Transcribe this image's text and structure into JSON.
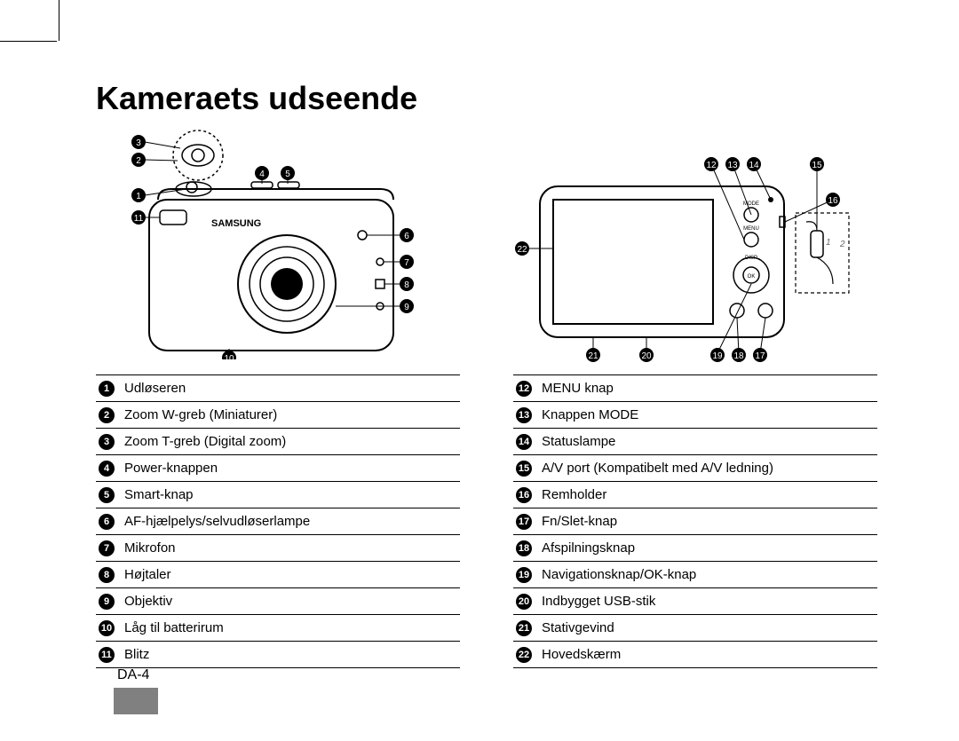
{
  "page": {
    "title": "Kameraets udseende",
    "number": "DA-4"
  },
  "front_parts": [
    {
      "n": 1,
      "label": "Udløseren"
    },
    {
      "n": 2,
      "label": "Zoom W-greb (Miniaturer)"
    },
    {
      "n": 3,
      "label": "Zoom T-greb (Digital zoom)"
    },
    {
      "n": 4,
      "label": "Power-knappen"
    },
    {
      "n": 5,
      "label": "Smart-knap"
    },
    {
      "n": 6,
      "label": "AF-hjælpelys/selvudløserlampe"
    },
    {
      "n": 7,
      "label": "Mikrofon"
    },
    {
      "n": 8,
      "label": "Højtaler"
    },
    {
      "n": 9,
      "label": "Objektiv"
    },
    {
      "n": 10,
      "label": "Låg til batterirum"
    },
    {
      "n": 11,
      "label": "Blitz"
    }
  ],
  "back_parts": [
    {
      "n": 12,
      "label": "MENU knap"
    },
    {
      "n": 13,
      "label": "Knappen MODE"
    },
    {
      "n": 14,
      "label": "Statuslampe"
    },
    {
      "n": 15,
      "label": "A/V port (Kompatibelt med A/V ledning)"
    },
    {
      "n": 16,
      "label": "Remholder"
    },
    {
      "n": 17,
      "label": "Fn/Slet-knap"
    },
    {
      "n": 18,
      "label": "Afspilningsknap"
    },
    {
      "n": 19,
      "label": "Navigationsknap/OK-knap"
    },
    {
      "n": 20,
      "label": "Indbygget USB-stik"
    },
    {
      "n": 21,
      "label": "Stativgevind"
    },
    {
      "n": 22,
      "label": "Hovedskærm"
    }
  ],
  "colors": {
    "text": "#000000",
    "background": "#ffffff",
    "rule": "#000000",
    "tab": "#808080",
    "marker_bg": "#000000",
    "marker_fg": "#ffffff"
  },
  "diagram": {
    "brand_text": "SAMSUNG",
    "usb_detail_labels": [
      "1",
      "2"
    ],
    "back_button_labels": [
      "MODE",
      "MENU",
      "DISP",
      "OK"
    ]
  },
  "typography": {
    "title_fontsize": 36,
    "title_weight": "bold",
    "table_fontsize": 15,
    "page_number_fontsize": 16,
    "font_family": "Arial, Helvetica, sans-serif"
  }
}
